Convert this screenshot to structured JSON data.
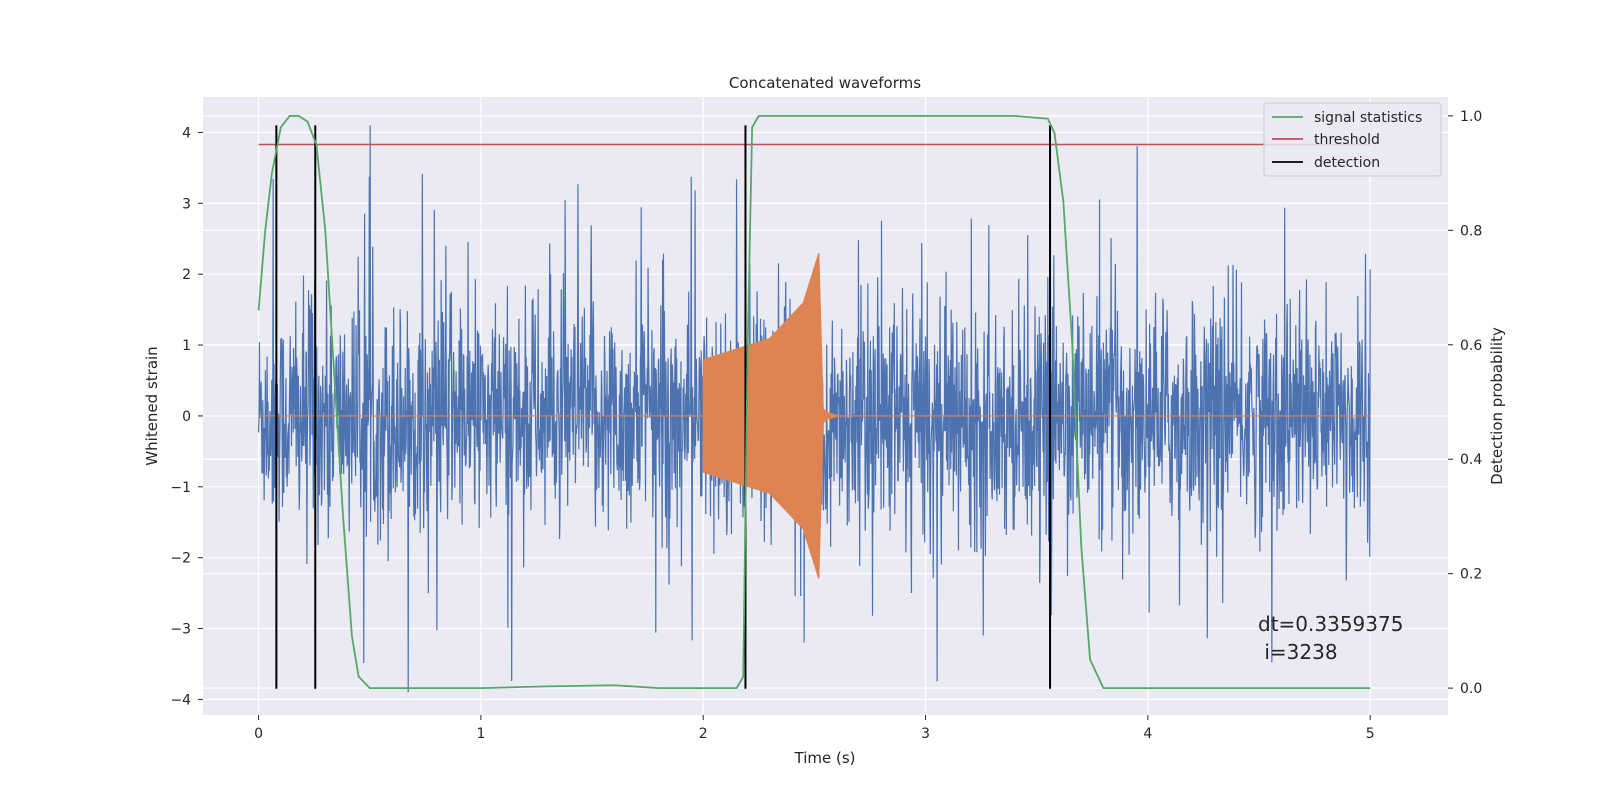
{
  "chart_data": {
    "type": "line",
    "title": "Concatenated waveforms",
    "xlabel": "Time (s)",
    "ylabel": "Whitened strain",
    "y2label": "Detection probability",
    "xlim": [
      -0.25,
      5.35
    ],
    "ylim": [
      -4.22,
      4.5
    ],
    "y2lim": [
      -0.047,
      1.033
    ],
    "xticks": [
      0,
      1,
      2,
      3,
      4,
      5
    ],
    "yticks": [
      -4,
      -3,
      -2,
      -1,
      0,
      1,
      2,
      3,
      4
    ],
    "y2ticks": [
      0.0,
      0.2,
      0.4,
      0.6,
      0.8,
      1.0
    ],
    "grid": true,
    "legend_position": "top-right",
    "series": [
      {
        "name": "",
        "kind": "noise",
        "axis": "left",
        "color": "#4c72b0",
        "x_range": [
          0,
          5
        ],
        "typical_envelope": [
          -2.0,
          2.0
        ],
        "max_peak": 4.1,
        "min_peak": -3.9
      },
      {
        "name": "",
        "kind": "chirp",
        "axis": "left",
        "color": "#dd8452",
        "x": [
          0.0,
          2.0,
          2.3,
          2.45,
          2.52,
          2.54,
          2.56,
          2.62,
          5.0
        ],
        "amplitude": [
          0.0,
          0.8,
          1.1,
          1.6,
          2.3,
          0.1,
          0.05,
          0.0,
          0.0
        ]
      },
      {
        "name": "signal statistics",
        "kind": "line",
        "axis": "right",
        "color": "#55a868",
        "x": [
          0.0,
          0.03,
          0.06,
          0.1,
          0.14,
          0.18,
          0.22,
          0.26,
          0.3,
          0.34,
          0.38,
          0.42,
          0.45,
          0.5,
          1.0,
          1.3,
          1.6,
          1.8,
          2.0,
          2.15,
          2.18,
          2.2,
          2.22,
          2.25,
          3.0,
          3.4,
          3.55,
          3.58,
          3.62,
          3.66,
          3.7,
          3.74,
          3.8,
          4.0,
          5.0
        ],
        "y": [
          0.66,
          0.8,
          0.9,
          0.98,
          1.0,
          1.0,
          0.99,
          0.95,
          0.8,
          0.55,
          0.3,
          0.09,
          0.02,
          0.0,
          0.0,
          0.003,
          0.005,
          0.0,
          0.0,
          0.0,
          0.02,
          0.6,
          0.98,
          1.0,
          1.0,
          1.0,
          0.995,
          0.97,
          0.85,
          0.6,
          0.25,
          0.05,
          0.0,
          0.0,
          0.0
        ]
      },
      {
        "name": "threshold",
        "kind": "hline",
        "axis": "right",
        "color": "#c44e52",
        "x_range": [
          0,
          5
        ],
        "y": 0.95
      },
      {
        "name": "detection",
        "kind": "vlines",
        "axis": "left",
        "color": "#000000",
        "x": [
          0.08,
          0.255,
          2.19,
          3.56
        ],
        "y_range": [
          -3.85,
          4.1
        ]
      }
    ],
    "annotation": {
      "text_line1": "dt=0.3359375",
      "text_line2": " i=3238"
    }
  }
}
